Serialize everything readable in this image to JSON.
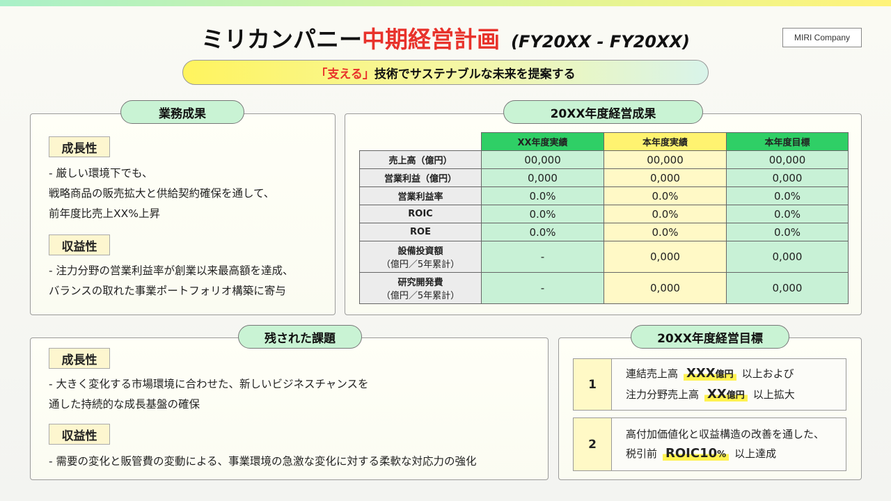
{
  "header": {
    "title_part1": "ミリカンパニー",
    "title_part2": "中期経営計画",
    "title_period": "(FY20XX - FY20XX)",
    "company": "MIRI Company",
    "slogan_highlight": "「支える」",
    "slogan_rest": "技術でサステナブルな未来を提案する"
  },
  "business_results": {
    "heading": "業務成果",
    "growth_label": "成長性",
    "growth_lines": [
      "- 厳しい環境下でも、",
      "戦略商品の販売拡大と供給契約確保を通して、",
      "前年度比売上XX%上昇"
    ],
    "profit_label": "収益性",
    "profit_lines": [
      "- 注力分野の営業利益率が創業以来最高額を達成、",
      "バランスの取れた事業ポートフォリオ構築に寄与"
    ]
  },
  "performance": {
    "heading": "20XX年度経営成果",
    "columns": [
      "XX年度実績",
      "本年度実績",
      "本年度目標"
    ],
    "rows": [
      {
        "label": "売上高（億円）",
        "sub": "",
        "values": [
          "00,000",
          "00,000",
          "00,000"
        ]
      },
      {
        "label": "営業利益（億円）",
        "sub": "",
        "values": [
          "0,000",
          "0,000",
          "0,000"
        ]
      },
      {
        "label": "営業利益率",
        "sub": "",
        "values": [
          "0.0%",
          "0.0%",
          "0.0%"
        ]
      },
      {
        "label": "ROIC",
        "sub": "",
        "values": [
          "0.0%",
          "0.0%",
          "0.0%"
        ]
      },
      {
        "label": "ROE",
        "sub": "",
        "values": [
          "0.0%",
          "0.0%",
          "0.0%"
        ]
      },
      {
        "label": "設備投資額",
        "sub": "（億円／5年累計）",
        "values": [
          "-",
          "0,000",
          "0,000"
        ]
      },
      {
        "label": "研究開発費",
        "sub": "（億円／5年累計）",
        "values": [
          "-",
          "0,000",
          "0,000"
        ]
      }
    ]
  },
  "remaining": {
    "heading": "残された課題",
    "growth_label": "成長性",
    "growth_lines": [
      "- 大きく変化する市場環境に合わせた、新しいビジネスチャンスを",
      "通した持続的な成長基盤の確保"
    ],
    "profit_label": "収益性",
    "profit_lines": [
      "- 需要の変化と販管費の変動による、事業環境の急激な変化に対する柔軟な対応力の強化"
    ]
  },
  "goals": {
    "heading": "20XX年度経営目標",
    "items": [
      {
        "num": "1",
        "line1_pre": "連結売上高",
        "line1_hl": "XXX",
        "line1_hl_unit": "億円",
        "line1_post": "以上および",
        "line2_pre": "注力分野売上高",
        "line2_hl": "XX",
        "line2_hl_unit": "億円",
        "line2_post": "以上拡大"
      },
      {
        "num": "2",
        "line1_pre": "高付加価値化と収益構造の改善を通した、",
        "line2_pre": "税引前",
        "line2_hl": "ROIC10",
        "line2_hl_unit": "%",
        "line2_post": "以上達成"
      }
    ]
  }
}
